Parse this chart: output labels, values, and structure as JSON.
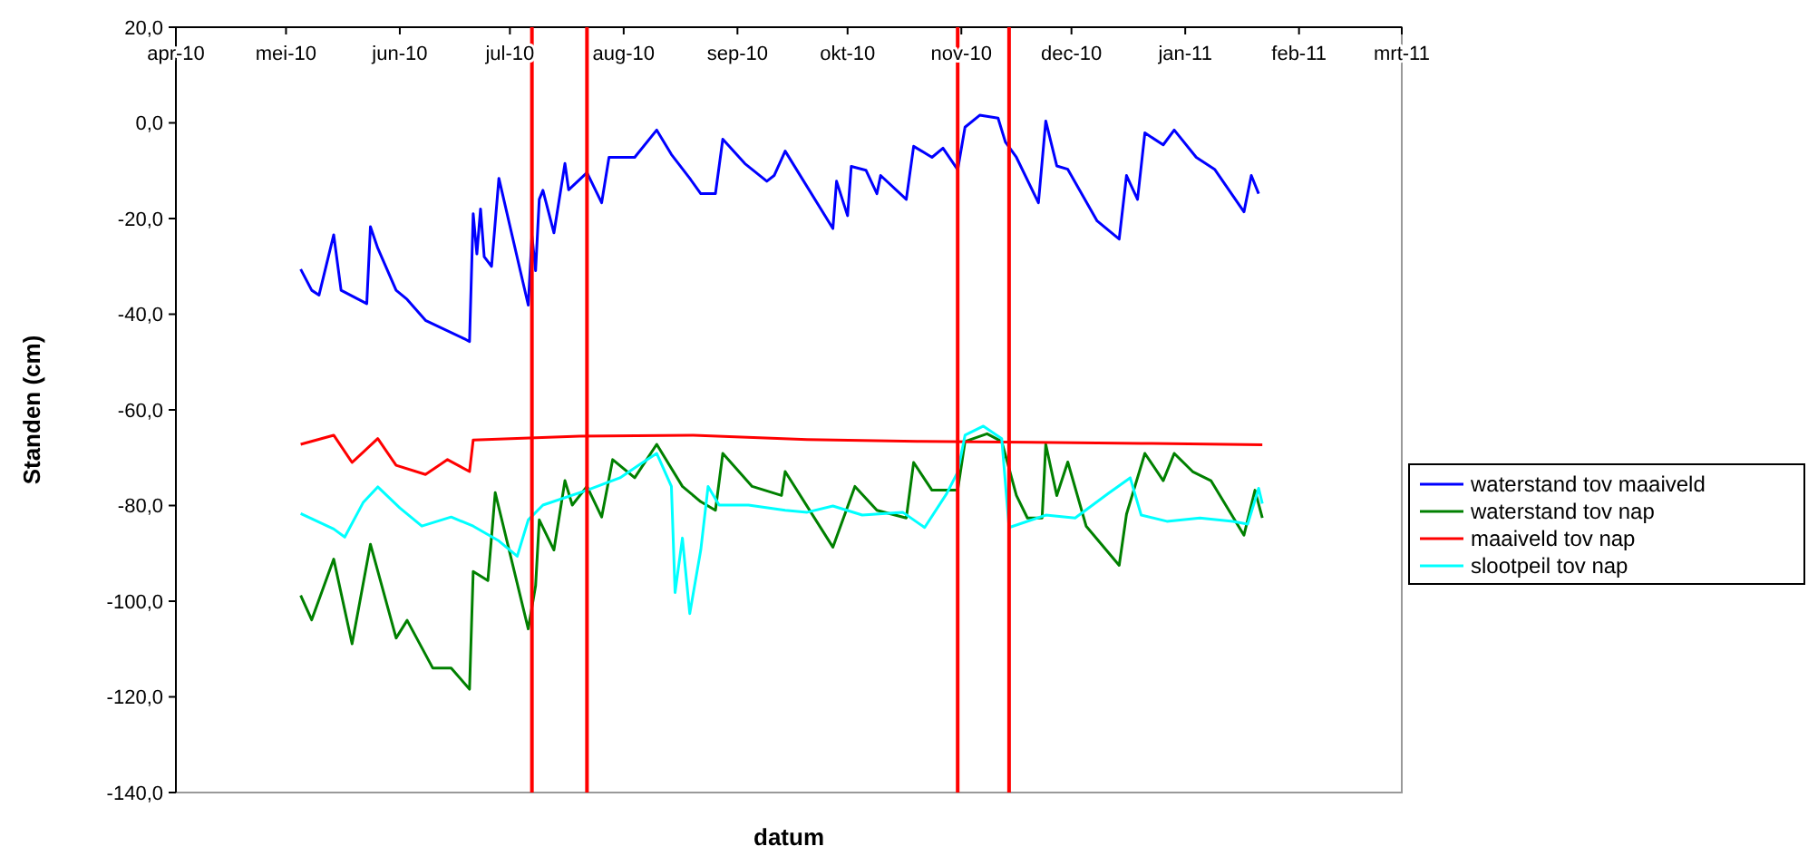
{
  "chart_data": {
    "type": "line",
    "xlabel": "datum",
    "ylabel": "Standen (cm)",
    "xlim": [
      "2010-04-01",
      "2011-03-01"
    ],
    "xticks": [
      {
        "value": "2010-04-01",
        "label": "apr-10"
      },
      {
        "value": "2010-05-01",
        "label": "mei-10"
      },
      {
        "value": "2010-06-01",
        "label": "jun-10"
      },
      {
        "value": "2010-07-01",
        "label": "jul-10"
      },
      {
        "value": "2010-08-01",
        "label": "aug-10"
      },
      {
        "value": "2010-09-01",
        "label": "sep-10"
      },
      {
        "value": "2010-10-01",
        "label": "okt-10"
      },
      {
        "value": "2010-11-01",
        "label": "nov-10"
      },
      {
        "value": "2010-12-01",
        "label": "dec-10"
      },
      {
        "value": "2011-01-01",
        "label": "jan-11"
      },
      {
        "value": "2011-02-01",
        "label": "feb-11"
      },
      {
        "value": "2011-03-01",
        "label": "mrt-11"
      }
    ],
    "ylim": [
      -140,
      20
    ],
    "yticks": [
      {
        "value": 20,
        "label": "20,0"
      },
      {
        "value": 0,
        "label": "0,0"
      },
      {
        "value": -20,
        "label": "-20,0"
      },
      {
        "value": -40,
        "label": "-40,0"
      },
      {
        "value": -60,
        "label": "-60,0"
      },
      {
        "value": -80,
        "label": "-80,0"
      },
      {
        "value": -100,
        "label": "-100,0"
      },
      {
        "value": -120,
        "label": "-120,0"
      },
      {
        "value": -140,
        "label": "-140,0"
      }
    ],
    "grid": false,
    "legend": "right",
    "marker": "none",
    "line_style": "solid",
    "ref_lines": [
      {
        "axis": "x",
        "value": "2010-07-07",
        "color": "#ff0000"
      },
      {
        "axis": "x",
        "value": "2010-07-22",
        "color": "#ff0000"
      },
      {
        "axis": "x",
        "value": "2010-10-31",
        "color": "#ff0000"
      },
      {
        "axis": "x",
        "value": "2010-11-14",
        "color": "#ff0000"
      }
    ],
    "series": [
      {
        "name": "waterstand tov maaiveld",
        "color": "#0000ff",
        "x": [
          "2010-05-05",
          "2010-05-08",
          "2010-05-10",
          "2010-05-14",
          "2010-05-16",
          "2010-05-23",
          "2010-05-24",
          "2010-05-26",
          "2010-05-31",
          "2010-06-03",
          "2010-06-08",
          "2010-06-19",
          "2010-06-20",
          "2010-06-21",
          "2010-06-22",
          "2010-06-23",
          "2010-06-24",
          "2010-06-26",
          "2010-06-28",
          "2010-07-06",
          "2010-07-07",
          "2010-07-08",
          "2010-07-09",
          "2010-07-10",
          "2010-07-13",
          "2010-07-16",
          "2010-07-17",
          "2010-07-22",
          "2010-07-26",
          "2010-07-28",
          "2010-08-04",
          "2010-08-10",
          "2010-08-14",
          "2010-08-19",
          "2010-08-22",
          "2010-08-26",
          "2010-08-28",
          "2010-09-03",
          "2010-09-09",
          "2010-09-11",
          "2010-09-14",
          "2010-09-27",
          "2010-09-28",
          "2010-10-01",
          "2010-10-02",
          "2010-10-06",
          "2010-10-09",
          "2010-10-10",
          "2010-10-17",
          "2010-10-19",
          "2010-10-24",
          "2010-10-27",
          "2010-10-31",
          "2010-11-02",
          "2010-11-06",
          "2010-11-11",
          "2010-11-13",
          "2010-11-16",
          "2010-11-22",
          "2010-11-24",
          "2010-11-27",
          "2010-11-30",
          "2010-12-08",
          "2010-12-14",
          "2010-12-16",
          "2010-12-19",
          "2010-12-21",
          "2010-12-26",
          "2010-12-29",
          "2011-01-04",
          "2011-01-09",
          "2011-01-17",
          "2011-01-19",
          "2011-01-21"
        ],
        "values": [
          -30.6,
          -35,
          -36,
          -23.4,
          -35,
          -37.8,
          -21.7,
          -26.2,
          -35,
          -36.9,
          -41.3,
          -45.3,
          -45.7,
          -19,
          -27.4,
          -18,
          -28,
          -30,
          -11.6,
          -38.1,
          -23.6,
          -30.9,
          -16,
          -14.1,
          -23,
          -8.5,
          -14,
          -10.4,
          -16.7,
          -7.2,
          -7.2,
          -1.5,
          -6.6,
          -11.6,
          -14.8,
          -14.8,
          -3.4,
          -8.5,
          -12.2,
          -11,
          -5.9,
          -22.1,
          -12.2,
          -19.4,
          -9.1,
          -9.9,
          -14.8,
          -11,
          -16,
          -4.9,
          -7.2,
          -5.3,
          -9.8,
          -0.9,
          1.6,
          1,
          -4,
          -7.2,
          -16.7,
          0.4,
          -9,
          -9.7,
          -20.5,
          -24.3,
          -11,
          -16,
          -2.1,
          -4.6,
          -1.5,
          -7.2,
          -9.7,
          -18.6,
          -11,
          -14.8
        ]
      },
      {
        "name": "waterstand tov nap",
        "color": "#008000",
        "x": [
          "2010-05-05",
          "2010-05-08",
          "2010-05-14",
          "2010-05-19",
          "2010-05-24",
          "2010-05-31",
          "2010-06-03",
          "2010-06-10",
          "2010-06-15",
          "2010-06-20",
          "2010-06-21",
          "2010-06-25",
          "2010-06-27",
          "2010-07-06",
          "2010-07-08",
          "2010-07-09",
          "2010-07-13",
          "2010-07-16",
          "2010-07-18",
          "2010-07-22",
          "2010-07-26",
          "2010-07-29",
          "2010-08-04",
          "2010-08-10",
          "2010-08-17",
          "2010-08-22",
          "2010-08-26",
          "2010-08-28",
          "2010-09-05",
          "2010-09-13",
          "2010-09-14",
          "2010-09-27",
          "2010-10-03",
          "2010-10-09",
          "2010-10-17",
          "2010-10-19",
          "2010-10-24",
          "2010-10-31",
          "2010-11-02",
          "2010-11-08",
          "2010-11-12",
          "2010-11-16",
          "2010-11-19",
          "2010-11-23",
          "2010-11-24",
          "2010-11-27",
          "2010-11-30",
          "2010-12-05",
          "2010-12-14",
          "2010-12-16",
          "2010-12-21",
          "2010-12-26",
          "2010-12-29",
          "2011-01-03",
          "2011-01-08",
          "2011-01-17",
          "2011-01-20",
          "2011-01-22"
        ],
        "values": [
          -98.8,
          -103.9,
          -91.2,
          -108.9,
          -88.1,
          -107.7,
          -104,
          -114,
          -114,
          -118.4,
          -93.8,
          -95.7,
          -77.3,
          -105.8,
          -96.8,
          -83,
          -89.3,
          -74.8,
          -79.9,
          -76,
          -82.4,
          -70.4,
          -74.2,
          -67.2,
          -76,
          -79.2,
          -81,
          -69.1,
          -76,
          -77.9,
          -72.9,
          -88.7,
          -76,
          -81,
          -82.6,
          -71,
          -76.8,
          -76.8,
          -66.6,
          -65,
          -66.6,
          -77.9,
          -82.6,
          -82.6,
          -67.2,
          -77.9,
          -70.9,
          -84.3,
          -92.5,
          -81.8,
          -69.1,
          -74.8,
          -69.1,
          -72.9,
          -74.8,
          -86.2,
          -76.8,
          -82.6
        ]
      },
      {
        "name": "maaiveld tov nap",
        "color": "#ff0000",
        "x": [
          "2010-05-05",
          "2010-05-14",
          "2010-05-19",
          "2010-05-26",
          "2010-05-31",
          "2010-06-08",
          "2010-06-14",
          "2010-06-20",
          "2010-06-21",
          "2010-07-20",
          "2010-08-20",
          "2010-09-20",
          "2010-10-20",
          "2010-11-20",
          "2010-12-20",
          "2011-01-22"
        ],
        "values": [
          -67.2,
          -65.3,
          -71,
          -66,
          -71.6,
          -73.5,
          -70.4,
          -72.9,
          -66.3,
          -65.5,
          -65.3,
          -66.2,
          -66.6,
          -66.8,
          -67,
          -67.3
        ]
      },
      {
        "name": "slootpeil tov nap",
        "color": "#00ffff",
        "x": [
          "2010-05-05",
          "2010-05-14",
          "2010-05-17",
          "2010-05-22",
          "2010-05-26",
          "2010-06-01",
          "2010-06-07",
          "2010-06-15",
          "2010-06-21",
          "2010-06-28",
          "2010-07-03",
          "2010-07-06",
          "2010-07-10",
          "2010-07-22",
          "2010-07-31",
          "2010-08-05",
          "2010-08-10",
          "2010-08-14",
          "2010-08-15",
          "2010-08-17",
          "2010-08-19",
          "2010-08-22",
          "2010-08-24",
          "2010-08-27",
          "2010-09-04",
          "2010-09-14",
          "2010-09-20",
          "2010-09-27",
          "2010-10-05",
          "2010-10-16",
          "2010-10-22",
          "2010-10-28",
          "2010-10-31",
          "2010-11-02",
          "2010-11-07",
          "2010-11-12",
          "2010-11-14",
          "2010-11-24",
          "2010-12-02",
          "2010-12-11",
          "2010-12-17",
          "2010-12-20",
          "2010-12-27",
          "2011-01-05",
          "2011-01-14",
          "2011-01-18",
          "2011-01-21",
          "2011-01-22"
        ],
        "values": [
          -81.7,
          -84.9,
          -86.6,
          -79.4,
          -76.1,
          -80.5,
          -84.3,
          -82.4,
          -84.3,
          -87.4,
          -90.6,
          -83,
          -79.9,
          -76.8,
          -74.2,
          -71.6,
          -69.1,
          -76,
          -98.2,
          -86.8,
          -102.6,
          -89.3,
          -76,
          -79.9,
          -79.9,
          -81,
          -81.4,
          -80.1,
          -82,
          -81.4,
          -84.6,
          -77.5,
          -73,
          -65.3,
          -63.4,
          -66,
          -84.6,
          -82,
          -82.6,
          -77.5,
          -74.2,
          -82,
          -83.3,
          -82.6,
          -83.3,
          -83.9,
          -76.4,
          -79.6
        ]
      }
    ]
  }
}
